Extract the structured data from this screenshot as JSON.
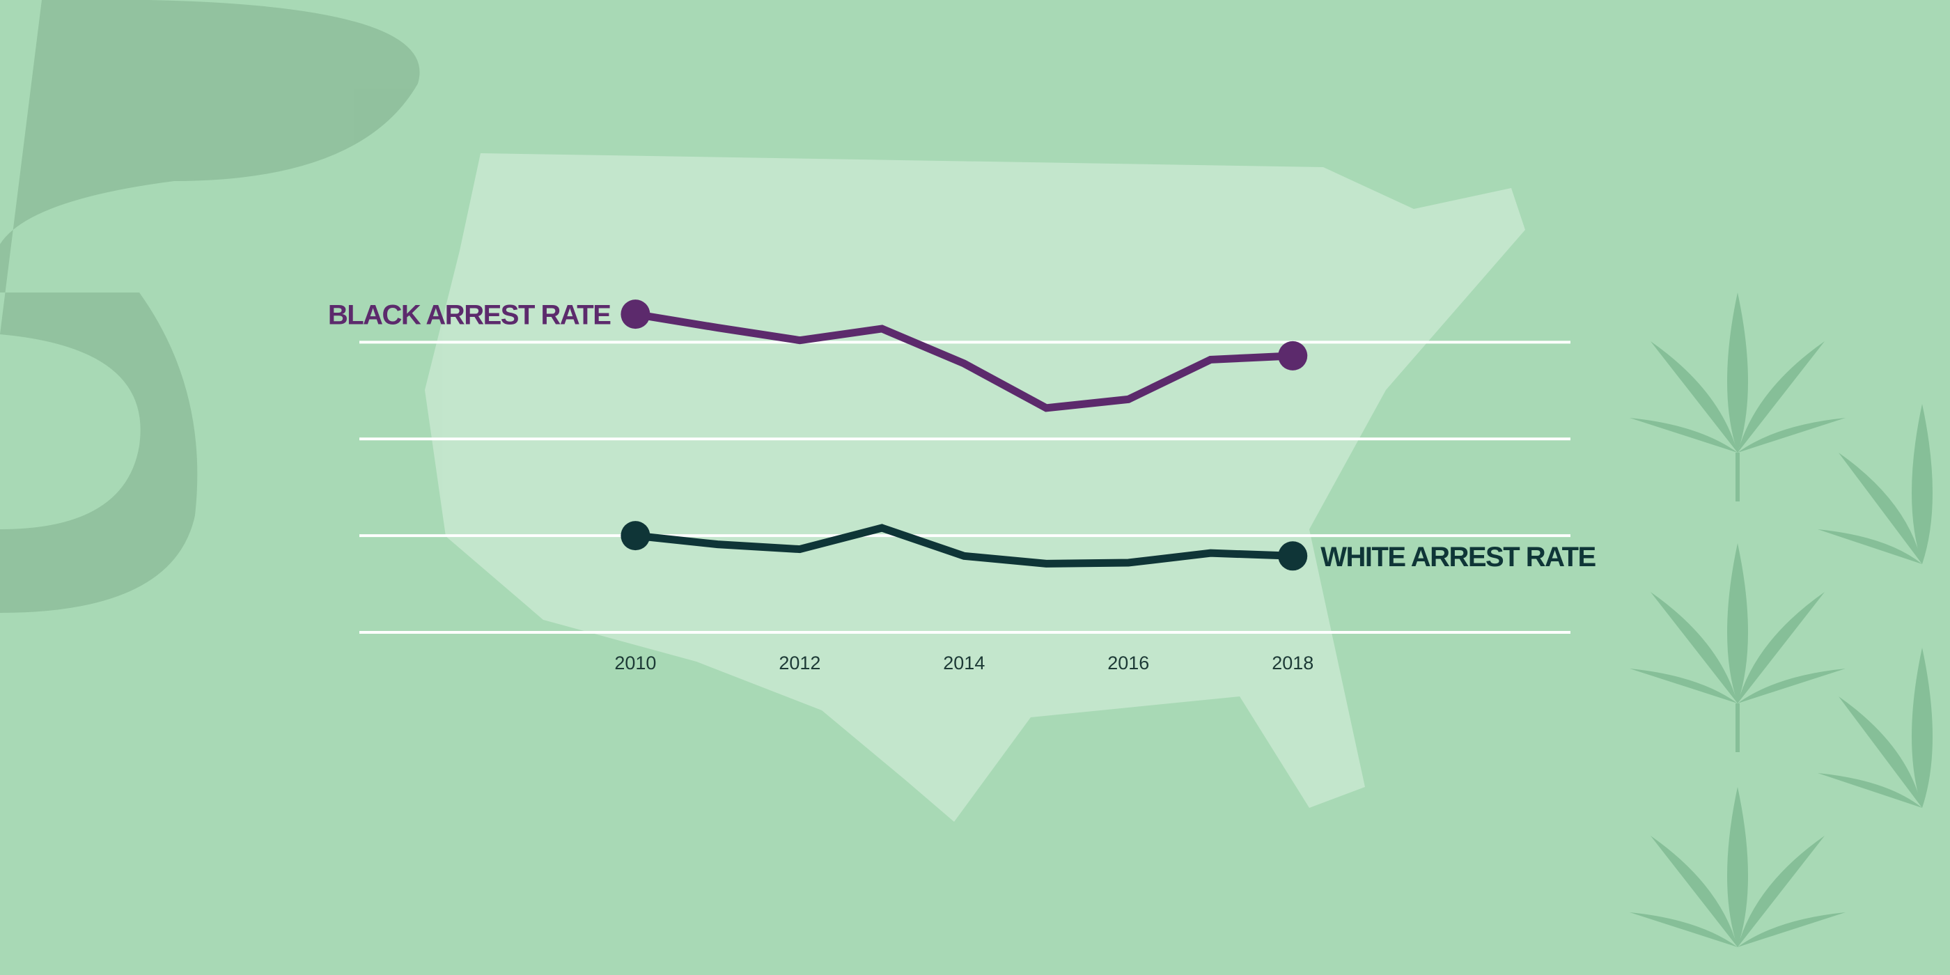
{
  "chart_data": {
    "type": "line",
    "x": [
      2010,
      2011,
      2012,
      2013,
      2014,
      2015,
      2016,
      2017,
      2018
    ],
    "series": [
      {
        "name": "BLACK ARREST RATE",
        "color": "#5c2a6c",
        "values": [
          3.29,
          3.15,
          3.02,
          3.14,
          2.78,
          2.32,
          2.41,
          2.82,
          2.86
        ]
      },
      {
        "name": "WHITE ARREST RATE",
        "color": "#0f3537",
        "values": [
          1.0,
          0.91,
          0.86,
          1.08,
          0.79,
          0.71,
          0.72,
          0.82,
          0.79
        ]
      }
    ],
    "xlim": [
      2006.64,
      2021.38
    ],
    "xticks": [
      2010,
      2012,
      2014,
      2016,
      2018
    ],
    "ylim": [
      0,
      3.5
    ],
    "yticks": [
      0,
      1,
      2,
      3
    ],
    "grid": true
  }
}
